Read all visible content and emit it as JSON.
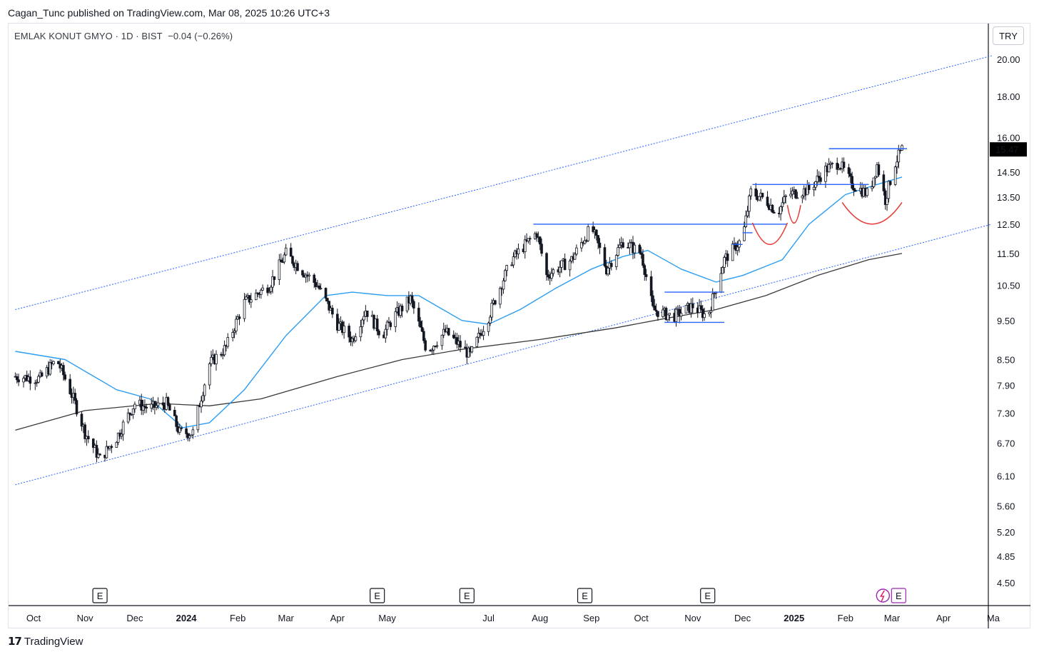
{
  "header": {
    "published": "Cagan_Tunc published on TradingView.com, Mar 08, 2025 10:26 UTC+3"
  },
  "symbol": {
    "title": "EMLAK KONUT GMYO · 1D · BIST",
    "change": "−0.04 (−0.26%)"
  },
  "currency": "TRY",
  "footer": {
    "brand": "TradingView",
    "logo_icon": "tradingview-logo-icon"
  },
  "colors": {
    "candle": "#131722",
    "ma_fast": "#2a9df4",
    "ma_slow": "#3a3a3a",
    "channel": "#2962ff",
    "hline": "#2962ff",
    "arc": "#e53935",
    "price_label_bg": "#000000"
  },
  "chart_data": {
    "type": "candlestick",
    "title": "EMLAK KONUT GMYO · 1D · BIST",
    "y_scale": "log",
    "ylim": [
      4.2,
      22.0
    ],
    "y_ticks": [
      "20.00",
      "18.00",
      "16.00",
      "14.50",
      "13.50",
      "12.50",
      "11.50",
      "10.50",
      "9.50",
      "8.50",
      "7.90",
      "7.30",
      "6.70",
      "6.10",
      "5.60",
      "5.20",
      "4.85",
      "4.50"
    ],
    "x_ticks": [
      {
        "label": "Oct",
        "bold": false
      },
      {
        "label": "Nov",
        "bold": false
      },
      {
        "label": "Dec",
        "bold": false
      },
      {
        "label": "2024",
        "bold": true
      },
      {
        "label": "Feb",
        "bold": false
      },
      {
        "label": "Mar",
        "bold": false
      },
      {
        "label": "Apr",
        "bold": false
      },
      {
        "label": "May",
        "bold": false
      },
      {
        "label": "Jul",
        "bold": false
      },
      {
        "label": "Aug",
        "bold": false
      },
      {
        "label": "Sep",
        "bold": false
      },
      {
        "label": "Oct",
        "bold": false
      },
      {
        "label": "Nov",
        "bold": false
      },
      {
        "label": "Dec",
        "bold": false
      },
      {
        "label": "2025",
        "bold": true
      },
      {
        "label": "Feb",
        "bold": false
      },
      {
        "label": "Mar",
        "bold": false
      },
      {
        "label": "Apr",
        "bold": false
      },
      {
        "label": "Ma",
        "bold": false
      }
    ],
    "last_price": "15.47",
    "earnings_markers": [
      "E",
      "E",
      "E",
      "E",
      "E",
      "E"
    ],
    "price_path": [
      [
        "2023-09-20",
        8.1
      ],
      [
        "2023-10-05",
        8.05
      ],
      [
        "2023-10-15",
        8.5
      ],
      [
        "2023-10-25",
        7.6
      ],
      [
        "2023-11-01",
        6.9
      ],
      [
        "2023-11-10",
        6.4
      ],
      [
        "2023-11-20",
        6.8
      ],
      [
        "2023-12-01",
        7.5
      ],
      [
        "2023-12-10",
        7.4
      ],
      [
        "2023-12-20",
        7.5
      ],
      [
        "2023-12-28",
        6.9
      ],
      [
        "2024-01-05",
        6.9
      ],
      [
        "2024-01-15",
        8.4
      ],
      [
        "2024-01-25",
        8.8
      ],
      [
        "2024-02-05",
        10.0
      ],
      [
        "2024-02-20",
        10.5
      ],
      [
        "2024-03-01",
        11.5
      ],
      [
        "2024-03-10",
        11.0
      ],
      [
        "2024-03-20",
        10.5
      ],
      [
        "2024-04-01",
        9.4
      ],
      [
        "2024-04-10",
        9.0
      ],
      [
        "2024-04-18",
        9.8
      ],
      [
        "2024-04-28",
        9.1
      ],
      [
        "2024-05-05",
        9.6
      ],
      [
        "2024-05-15",
        10.1
      ],
      [
        "2024-05-25",
        8.7
      ],
      [
        "2024-06-05",
        9.2
      ],
      [
        "2024-06-20",
        8.6
      ],
      [
        "2024-07-01",
        9.6
      ],
      [
        "2024-07-15",
        11.3
      ],
      [
        "2024-07-30",
        12.2
      ],
      [
        "2024-08-05",
        10.8
      ],
      [
        "2024-08-20",
        11.3
      ],
      [
        "2024-09-01",
        12.4
      ],
      [
        "2024-09-10",
        11.0
      ],
      [
        "2024-09-20",
        11.9
      ],
      [
        "2024-10-01",
        11.5
      ],
      [
        "2024-10-08",
        9.8
      ],
      [
        "2024-10-20",
        9.6
      ],
      [
        "2024-11-01",
        9.9
      ],
      [
        "2024-11-10",
        9.6
      ],
      [
        "2024-11-20",
        11.3
      ],
      [
        "2024-12-01",
        12.0
      ],
      [
        "2024-12-06",
        13.7
      ],
      [
        "2024-12-15",
        13.4
      ],
      [
        "2024-12-22",
        12.9
      ],
      [
        "2024-12-28",
        13.6
      ],
      [
        "2025-01-10",
        13.8
      ],
      [
        "2025-01-20",
        14.6
      ],
      [
        "2025-01-28",
        14.9
      ],
      [
        "2025-02-05",
        14.0
      ],
      [
        "2025-02-15",
        13.6
      ],
      [
        "2025-02-20",
        14.8
      ],
      [
        "2025-02-25",
        13.4
      ],
      [
        "2025-03-03",
        14.9
      ],
      [
        "2025-03-07",
        15.47
      ]
    ],
    "ma_fast": [
      [
        "2023-09-20",
        8.7
      ],
      [
        "2023-10-20",
        8.5
      ],
      [
        "2023-11-20",
        7.8
      ],
      [
        "2023-12-10",
        7.6
      ],
      [
        "2023-12-30",
        7.0
      ],
      [
        "2024-01-15",
        7.1
      ],
      [
        "2024-02-05",
        7.8
      ],
      [
        "2024-03-01",
        9.1
      ],
      [
        "2024-03-25",
        10.2
      ],
      [
        "2024-04-10",
        10.3
      ],
      [
        "2024-05-01",
        10.2
      ],
      [
        "2024-05-20",
        10.2
      ],
      [
        "2024-06-15",
        9.5
      ],
      [
        "2024-07-01",
        9.4
      ],
      [
        "2024-07-20",
        9.8
      ],
      [
        "2024-08-10",
        10.4
      ],
      [
        "2024-09-01",
        11.0
      ],
      [
        "2024-09-20",
        11.4
      ],
      [
        "2024-10-05",
        11.6
      ],
      [
        "2024-10-25",
        11.0
      ],
      [
        "2024-11-15",
        10.6
      ],
      [
        "2024-12-01",
        10.8
      ],
      [
        "2024-12-25",
        11.3
      ],
      [
        "2025-01-10",
        12.5
      ],
      [
        "2025-02-01",
        13.6
      ],
      [
        "2025-02-20",
        14.0
      ],
      [
        "2025-03-07",
        14.3
      ]
    ],
    "ma_slow": [
      [
        "2023-09-20",
        6.95
      ],
      [
        "2023-11-01",
        7.35
      ],
      [
        "2023-12-15",
        7.5
      ],
      [
        "2024-01-15",
        7.45
      ],
      [
        "2024-02-15",
        7.6
      ],
      [
        "2024-04-01",
        8.1
      ],
      [
        "2024-05-10",
        8.5
      ],
      [
        "2024-06-15",
        8.75
      ],
      [
        "2024-08-01",
        9.0
      ],
      [
        "2024-09-15",
        9.3
      ],
      [
        "2024-10-15",
        9.55
      ],
      [
        "2024-11-15",
        9.8
      ],
      [
        "2024-12-15",
        10.2
      ],
      [
        "2025-01-15",
        10.8
      ],
      [
        "2025-02-15",
        11.3
      ],
      [
        "2025-03-07",
        11.5
      ]
    ],
    "channel": {
      "upper": [
        [
          "2023-09-20",
          9.8
        ],
        [
          "2025-04-30",
          20.2
        ]
      ],
      "lower": [
        [
          "2023-09-20",
          5.95
        ],
        [
          "2025-04-30",
          12.5
        ]
      ]
    },
    "levels": [
      {
        "from": "2024-07-28",
        "to": "2024-12-28",
        "price": 12.5
      },
      {
        "from": "2024-10-15",
        "to": "2024-11-20",
        "price": 10.3
      },
      {
        "from": "2024-10-15",
        "to": "2024-11-20",
        "price": 9.45
      },
      {
        "from": "2024-11-25",
        "to": "2024-12-01",
        "price": 11.8
      },
      {
        "from": "2024-12-01",
        "to": "2024-12-07",
        "price": 12.2
      },
      {
        "from": "2024-12-07",
        "to": "2025-02-15",
        "price": 14.0
      },
      {
        "from": "2025-01-22",
        "to": "2025-03-10",
        "price": 15.5
      }
    ],
    "arcs": [
      {
        "from": "2024-12-07",
        "to": "2024-12-28",
        "price": 12.55,
        "depth": 0.06
      },
      {
        "from": "2024-12-28",
        "to": "2025-01-05",
        "price": 13.2,
        "depth": 0.05
      },
      {
        "from": "2025-01-30",
        "to": "2025-03-07",
        "price": 13.3,
        "depth": 0.06
      }
    ]
  }
}
